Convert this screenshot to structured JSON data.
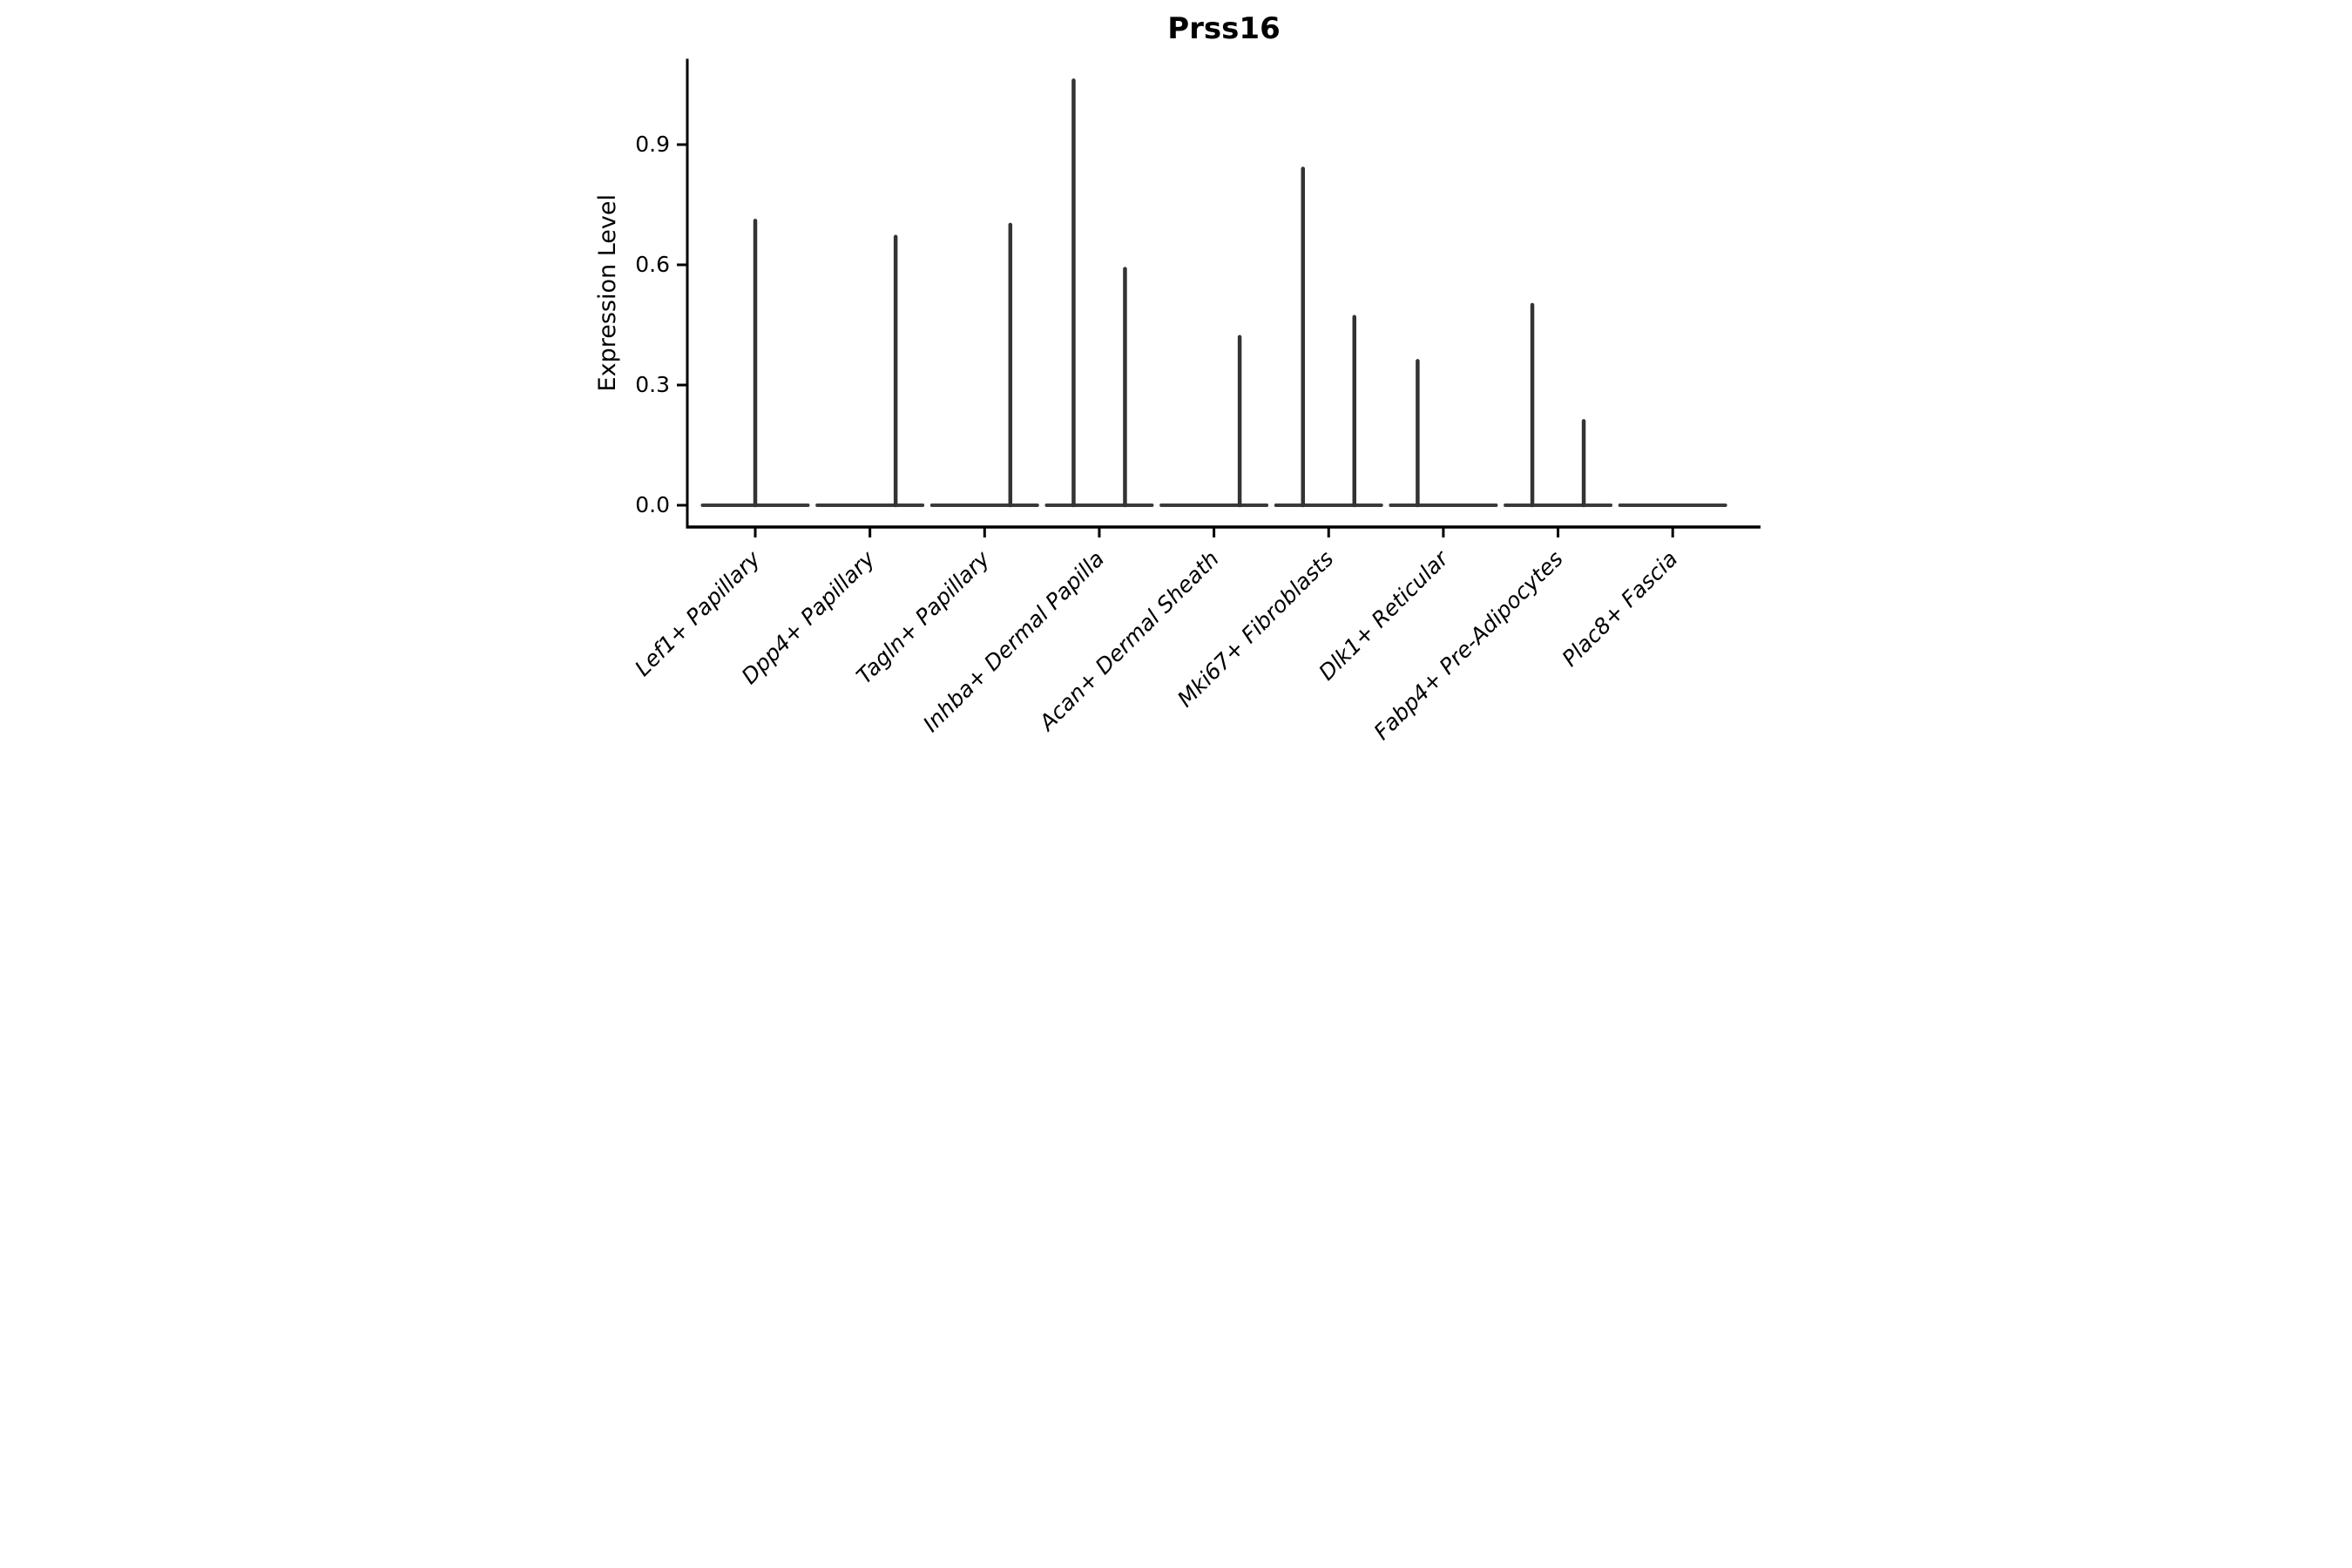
{
  "chart_data": {
    "type": "violin",
    "title": "Prss16",
    "xlabel": "",
    "ylabel": "Expression Level",
    "yticks": [
      "0.0",
      "0.3",
      "0.6",
      "0.9"
    ],
    "ytick_values": [
      0.0,
      0.3,
      0.6,
      0.9
    ],
    "ylim": [
      0.0,
      1.11
    ],
    "grid": false,
    "legend": "none",
    "line_color": "#333333",
    "body_color": "#3a3a3a",
    "spine_color": "#000000",
    "categories": [
      {
        "label": "Lef1+ Papillary",
        "spikes": [
          {
            "position": "center",
            "value": 0.71
          }
        ]
      },
      {
        "label": "Dpp4+ Papillary",
        "spikes": [
          {
            "position": "right",
            "value": 0.67
          }
        ]
      },
      {
        "label": "Tagln+ Papillary",
        "spikes": [
          {
            "position": "right",
            "value": 0.7
          }
        ]
      },
      {
        "label": "Inhba+ Dermal Papilla",
        "spikes": [
          {
            "position": "left",
            "value": 1.06
          },
          {
            "position": "right",
            "value": 0.59
          }
        ]
      },
      {
        "label": "Acan+ Dermal Sheath",
        "spikes": [
          {
            "position": "right",
            "value": 0.42
          }
        ]
      },
      {
        "label": "Mki67+ Fibroblasts",
        "spikes": [
          {
            "position": "left",
            "value": 0.84
          },
          {
            "position": "right",
            "value": 0.47
          }
        ]
      },
      {
        "label": "Dlk1+ Reticular",
        "spikes": [
          {
            "position": "left",
            "value": 0.36
          }
        ]
      },
      {
        "label": "Fabp4+ Pre-Adipocytes",
        "spikes": [
          {
            "position": "left",
            "value": 0.5
          },
          {
            "position": "right",
            "value": 0.21
          }
        ]
      },
      {
        "label": "Plac8+ Fascia",
        "spikes": []
      }
    ]
  }
}
